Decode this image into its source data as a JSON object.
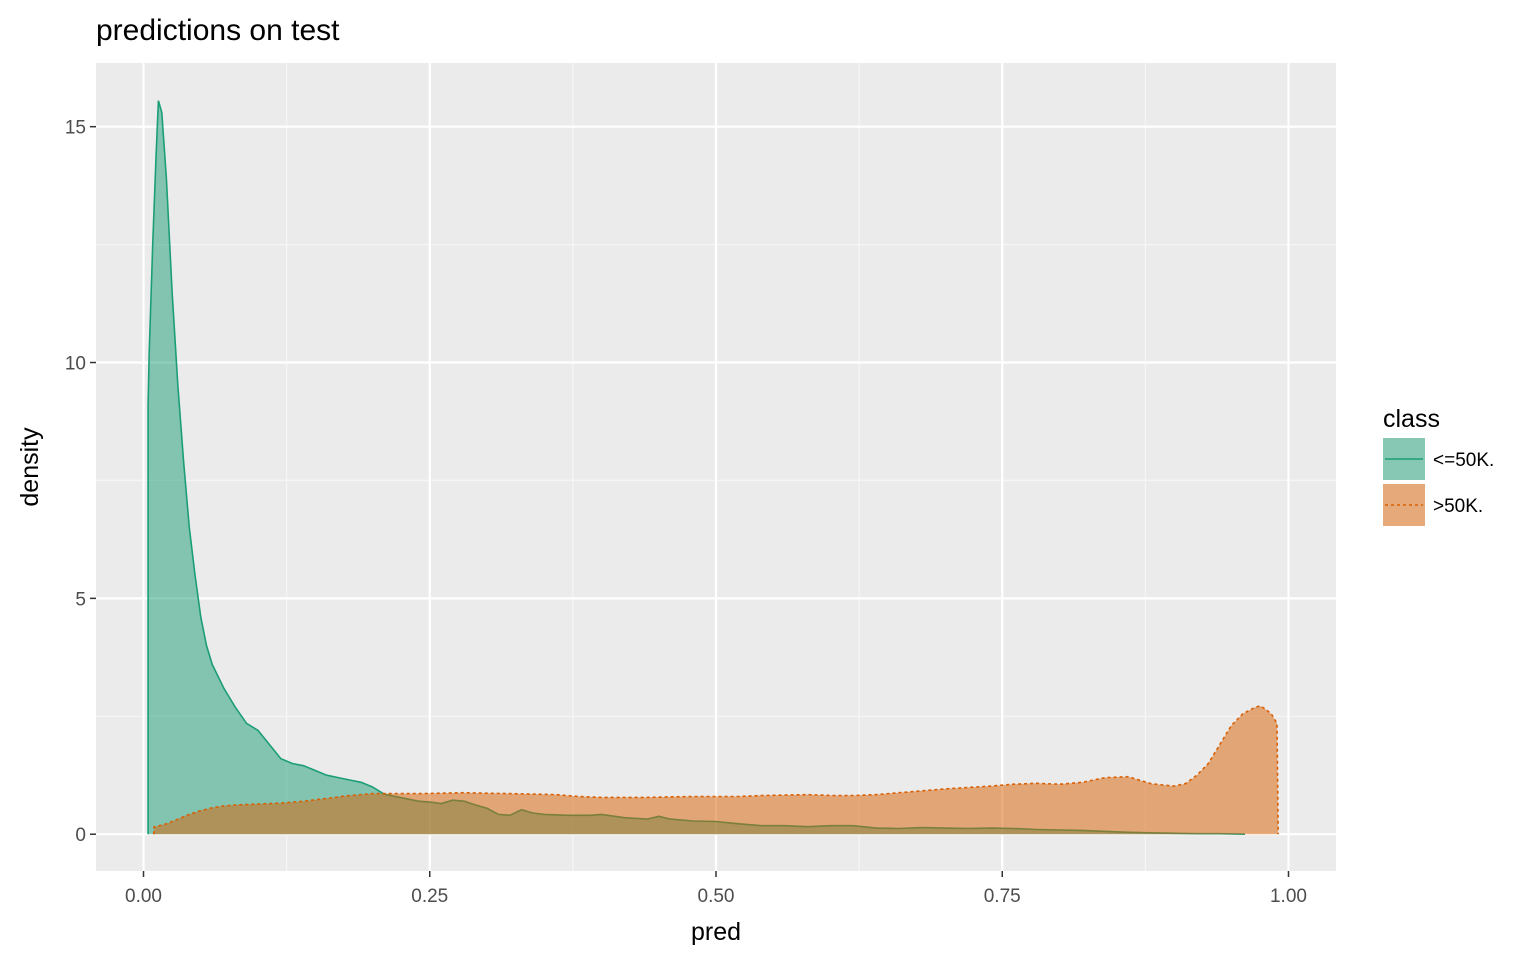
{
  "chart_data": {
    "type": "area",
    "title": "predictions on test",
    "xlabel": "pred",
    "ylabel": "density",
    "xlim": [
      -0.0415,
      1.0415
    ],
    "ylim": [
      -0.78,
      16.35
    ],
    "x_ticks": [
      0.0,
      0.25,
      0.5,
      0.75,
      1.0
    ],
    "x_tick_labels": [
      "0.00",
      "0.25",
      "0.50",
      "0.75",
      "1.00"
    ],
    "y_ticks": [
      0,
      5,
      10,
      15
    ],
    "y_tick_labels": [
      "0",
      "5",
      "10",
      "15"
    ],
    "grid": true,
    "legend": {
      "title": "class",
      "position": "right"
    },
    "series": [
      {
        "name": "<=50K.",
        "color": "#1b9e77",
        "fill": "#1b9e77",
        "fill_opacity": 0.5,
        "linetype": "solid",
        "points": [
          [
            0.004,
            0.0
          ],
          [
            0.004,
            9.1
          ],
          [
            0.005,
            10.2
          ],
          [
            0.008,
            12.5
          ],
          [
            0.011,
            14.4
          ],
          [
            0.013,
            15.55
          ],
          [
            0.016,
            15.3
          ],
          [
            0.02,
            13.9
          ],
          [
            0.025,
            11.5
          ],
          [
            0.03,
            9.5
          ],
          [
            0.035,
            7.9
          ],
          [
            0.04,
            6.5
          ],
          [
            0.045,
            5.5
          ],
          [
            0.05,
            4.6
          ],
          [
            0.055,
            4.0
          ],
          [
            0.06,
            3.6
          ],
          [
            0.07,
            3.1
          ],
          [
            0.08,
            2.7
          ],
          [
            0.09,
            2.35
          ],
          [
            0.1,
            2.2
          ],
          [
            0.11,
            1.9
          ],
          [
            0.12,
            1.6
          ],
          [
            0.13,
            1.5
          ],
          [
            0.14,
            1.45
          ],
          [
            0.15,
            1.35
          ],
          [
            0.16,
            1.25
          ],
          [
            0.17,
            1.2
          ],
          [
            0.18,
            1.15
          ],
          [
            0.19,
            1.1
          ],
          [
            0.2,
            1.0
          ],
          [
            0.21,
            0.85
          ],
          [
            0.22,
            0.8
          ],
          [
            0.23,
            0.75
          ],
          [
            0.24,
            0.7
          ],
          [
            0.25,
            0.68
          ],
          [
            0.26,
            0.65
          ],
          [
            0.27,
            0.72
          ],
          [
            0.28,
            0.7
          ],
          [
            0.29,
            0.62
          ],
          [
            0.3,
            0.55
          ],
          [
            0.31,
            0.42
          ],
          [
            0.32,
            0.4
          ],
          [
            0.33,
            0.52
          ],
          [
            0.34,
            0.45
          ],
          [
            0.35,
            0.42
          ],
          [
            0.37,
            0.4
          ],
          [
            0.39,
            0.4
          ],
          [
            0.4,
            0.42
          ],
          [
            0.42,
            0.35
          ],
          [
            0.44,
            0.32
          ],
          [
            0.45,
            0.38
          ],
          [
            0.46,
            0.32
          ],
          [
            0.48,
            0.28
          ],
          [
            0.5,
            0.27
          ],
          [
            0.52,
            0.22
          ],
          [
            0.54,
            0.18
          ],
          [
            0.56,
            0.18
          ],
          [
            0.58,
            0.16
          ],
          [
            0.6,
            0.18
          ],
          [
            0.62,
            0.18
          ],
          [
            0.64,
            0.13
          ],
          [
            0.66,
            0.12
          ],
          [
            0.68,
            0.14
          ],
          [
            0.7,
            0.13
          ],
          [
            0.72,
            0.12
          ],
          [
            0.74,
            0.13
          ],
          [
            0.76,
            0.12
          ],
          [
            0.78,
            0.1
          ],
          [
            0.8,
            0.09
          ],
          [
            0.82,
            0.08
          ],
          [
            0.84,
            0.06
          ],
          [
            0.86,
            0.04
          ],
          [
            0.88,
            0.03
          ],
          [
            0.9,
            0.02
          ],
          [
            0.92,
            0.01
          ],
          [
            0.94,
            0.01
          ],
          [
            0.962,
            0.0
          ]
        ]
      },
      {
        "name": ">50K.",
        "color": "#d95f02",
        "fill": "#d95f02",
        "fill_opacity": 0.5,
        "linetype": "dashed",
        "points": [
          [
            0.009,
            0.0
          ],
          [
            0.009,
            0.15
          ],
          [
            0.02,
            0.22
          ],
          [
            0.03,
            0.32
          ],
          [
            0.04,
            0.42
          ],
          [
            0.05,
            0.5
          ],
          [
            0.06,
            0.56
          ],
          [
            0.07,
            0.6
          ],
          [
            0.08,
            0.62
          ],
          [
            0.1,
            0.64
          ],
          [
            0.12,
            0.66
          ],
          [
            0.14,
            0.7
          ],
          [
            0.16,
            0.76
          ],
          [
            0.18,
            0.82
          ],
          [
            0.2,
            0.86
          ],
          [
            0.22,
            0.86
          ],
          [
            0.24,
            0.86
          ],
          [
            0.26,
            0.87
          ],
          [
            0.28,
            0.88
          ],
          [
            0.3,
            0.87
          ],
          [
            0.32,
            0.86
          ],
          [
            0.34,
            0.85
          ],
          [
            0.36,
            0.84
          ],
          [
            0.38,
            0.8
          ],
          [
            0.4,
            0.78
          ],
          [
            0.42,
            0.78
          ],
          [
            0.44,
            0.78
          ],
          [
            0.46,
            0.79
          ],
          [
            0.48,
            0.8
          ],
          [
            0.5,
            0.8
          ],
          [
            0.52,
            0.8
          ],
          [
            0.54,
            0.82
          ],
          [
            0.56,
            0.83
          ],
          [
            0.58,
            0.84
          ],
          [
            0.6,
            0.82
          ],
          [
            0.62,
            0.82
          ],
          [
            0.64,
            0.84
          ],
          [
            0.66,
            0.88
          ],
          [
            0.68,
            0.92
          ],
          [
            0.7,
            0.96
          ],
          [
            0.72,
            0.99
          ],
          [
            0.74,
            1.02
          ],
          [
            0.76,
            1.06
          ],
          [
            0.78,
            1.08
          ],
          [
            0.8,
            1.06
          ],
          [
            0.82,
            1.1
          ],
          [
            0.84,
            1.2
          ],
          [
            0.86,
            1.22
          ],
          [
            0.88,
            1.07
          ],
          [
            0.9,
            1.02
          ],
          [
            0.91,
            1.07
          ],
          [
            0.92,
            1.25
          ],
          [
            0.93,
            1.5
          ],
          [
            0.94,
            1.9
          ],
          [
            0.95,
            2.3
          ],
          [
            0.96,
            2.55
          ],
          [
            0.97,
            2.68
          ],
          [
            0.975,
            2.72
          ],
          [
            0.98,
            2.65
          ],
          [
            0.985,
            2.55
          ],
          [
            0.99,
            2.35
          ],
          [
            0.991,
            0.0
          ]
        ]
      }
    ]
  }
}
